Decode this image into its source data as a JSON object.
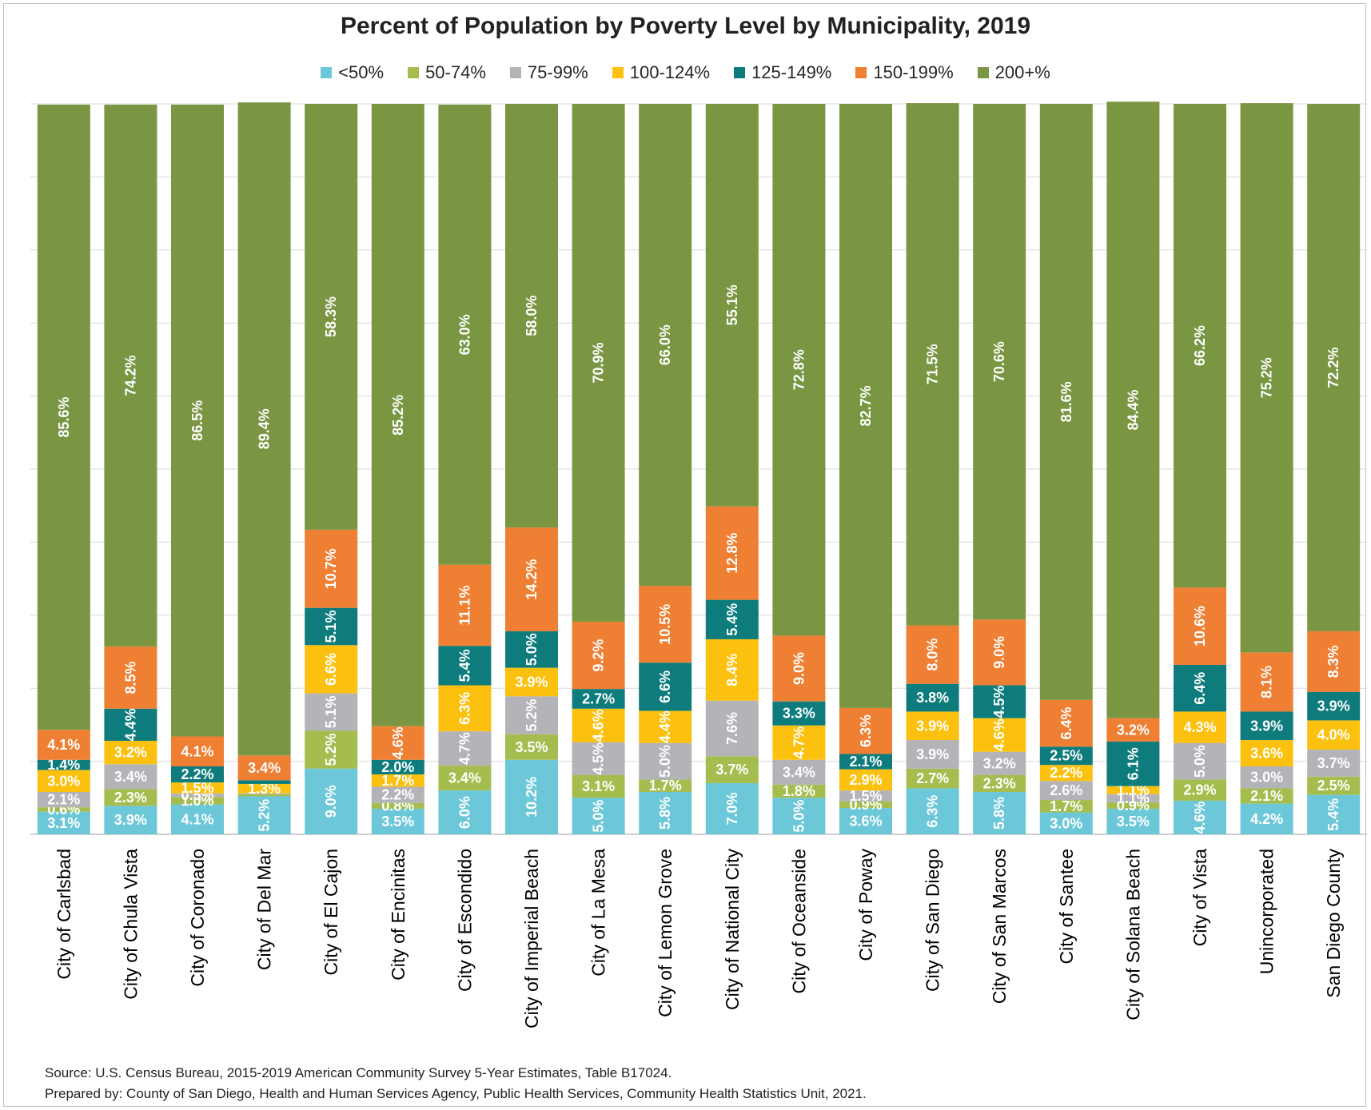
{
  "chart_data": {
    "type": "bar",
    "stacked": true,
    "title": "Percent of Population by Poverty Level by Municipality, 2019",
    "legend_position": "top",
    "grid": true,
    "ylim": [
      0,
      100
    ],
    "categories": [
      "City of Carlsbad",
      "City of Chula Vista",
      "City of Coronado",
      "City of Del Mar",
      "City of El Cajon",
      "City of Encinitas",
      "City of Escondido",
      "City of Imperial Beach",
      "City of La Mesa",
      "City of Lemon Grove",
      "City of National City",
      "City of Oceanside",
      "City of Poway",
      "City of San Diego",
      "City of San Marcos",
      "City of Santee",
      "City of Solana Beach",
      "City of Vista",
      "Unincorporated",
      "San Diego County"
    ],
    "series": [
      {
        "name": "<50%",
        "color": "#6cc8d9",
        "values": [
          3.1,
          3.9,
          4.1,
          5.2,
          9.0,
          3.5,
          6.0,
          10.2,
          5.0,
          5.8,
          7.0,
          5.0,
          3.6,
          6.3,
          5.8,
          3.0,
          3.5,
          4.6,
          4.2,
          5.4
        ]
      },
      {
        "name": "50-74%",
        "color": "#a4bd4e",
        "values": [
          0.6,
          2.3,
          1.0,
          0.3,
          5.2,
          0.8,
          3.4,
          3.5,
          3.1,
          1.7,
          3.7,
          1.8,
          0.9,
          2.7,
          2.3,
          1.7,
          0.9,
          2.9,
          2.1,
          2.5
        ]
      },
      {
        "name": "75-99%",
        "color": "#b3b3b8",
        "values": [
          2.1,
          3.4,
          0.5,
          0.1,
          5.1,
          2.2,
          4.7,
          5.2,
          4.5,
          5.0,
          7.6,
          3.4,
          1.5,
          3.9,
          3.2,
          2.6,
          1.1,
          5.0,
          3.0,
          3.7
        ]
      },
      {
        "name": "100-124%",
        "color": "#fcc10e",
        "values": [
          3.0,
          3.2,
          1.5,
          1.3,
          6.6,
          1.7,
          6.3,
          3.9,
          4.6,
          4.4,
          8.4,
          4.7,
          2.9,
          3.9,
          4.6,
          2.2,
          1.1,
          4.3,
          3.6,
          4.0
        ]
      },
      {
        "name": "125-149%",
        "color": "#0e7c7d",
        "values": [
          1.4,
          4.4,
          2.2,
          0.5,
          5.1,
          2.0,
          5.4,
          5.0,
          2.7,
          6.6,
          5.4,
          3.3,
          2.1,
          3.8,
          4.5,
          2.5,
          6.1,
          6.4,
          3.9,
          3.9
        ]
      },
      {
        "name": "150-199%",
        "color": "#ee7f33",
        "values": [
          4.1,
          8.5,
          4.1,
          3.4,
          10.7,
          4.6,
          11.1,
          14.2,
          9.2,
          10.5,
          12.8,
          9.0,
          6.3,
          8.0,
          9.0,
          6.4,
          3.2,
          10.6,
          8.1,
          8.3
        ]
      },
      {
        "name": "200+%",
        "color": "#7a9643",
        "values": [
          85.6,
          74.2,
          86.5,
          89.4,
          58.3,
          85.2,
          63.0,
          58.0,
          70.9,
          66.0,
          55.1,
          72.8,
          82.7,
          71.5,
          70.6,
          81.6,
          84.4,
          66.2,
          75.2,
          72.2
        ]
      }
    ],
    "hidden_labels": [
      {
        "category": 3,
        "series": 1
      },
      {
        "category": 3,
        "series": 2
      },
      {
        "category": 3,
        "series": 4
      }
    ]
  },
  "notes": {
    "source": "Source: U.S. Census Bureau, 2015-2019 American Community Survey 5-Year Estimates, Table B17024.",
    "prepared": "Prepared by: County of San Diego, Health and Human Services Agency, Public Health Services, Community Health Statistics Unit, 2021."
  }
}
